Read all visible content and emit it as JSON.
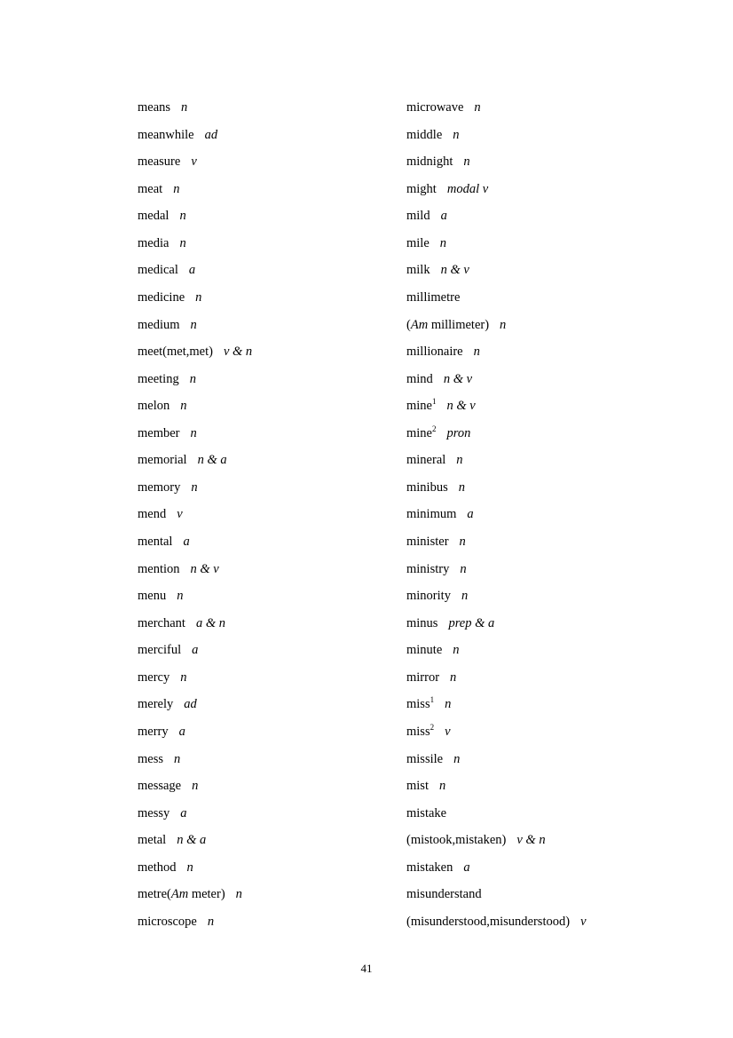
{
  "page": {
    "number": "41",
    "background": "#ffffff",
    "text_color": "#000000"
  },
  "columns": [
    {
      "entries": [
        {
          "runs": [
            {
              "t": "means"
            }
          ],
          "pos": "n"
        },
        {
          "runs": [
            {
              "t": "meanwhile"
            }
          ],
          "pos": "ad"
        },
        {
          "runs": [
            {
              "t": "measure"
            }
          ],
          "pos": "v"
        },
        {
          "runs": [
            {
              "t": "meat"
            }
          ],
          "pos": "n"
        },
        {
          "runs": [
            {
              "t": "medal"
            }
          ],
          "pos": "n"
        },
        {
          "runs": [
            {
              "t": "media"
            }
          ],
          "pos": "n"
        },
        {
          "runs": [
            {
              "t": "medical"
            }
          ],
          "pos": "a"
        },
        {
          "runs": [
            {
              "t": "medicine"
            }
          ],
          "pos": "n"
        },
        {
          "runs": [
            {
              "t": "medium"
            }
          ],
          "pos": "n"
        },
        {
          "runs": [
            {
              "t": "meet(met,met)"
            }
          ],
          "pos": "v & n"
        },
        {
          "runs": [
            {
              "t": "meeting"
            }
          ],
          "pos": "n"
        },
        {
          "runs": [
            {
              "t": "melon"
            }
          ],
          "pos": "n"
        },
        {
          "runs": [
            {
              "t": "member"
            }
          ],
          "pos": "n"
        },
        {
          "runs": [
            {
              "t": "memorial"
            }
          ],
          "pos": "n & a"
        },
        {
          "runs": [
            {
              "t": "memory"
            }
          ],
          "pos": "n"
        },
        {
          "runs": [
            {
              "t": "mend"
            }
          ],
          "pos": "v"
        },
        {
          "runs": [
            {
              "t": "mental"
            }
          ],
          "pos": "a"
        },
        {
          "runs": [
            {
              "t": "mention"
            }
          ],
          "pos": "n & v"
        },
        {
          "runs": [
            {
              "t": "menu"
            }
          ],
          "pos": "n"
        },
        {
          "runs": [
            {
              "t": "merchant"
            }
          ],
          "pos": "a & n"
        },
        {
          "runs": [
            {
              "t": "merciful"
            }
          ],
          "pos": "a"
        },
        {
          "runs": [
            {
              "t": "mercy"
            }
          ],
          "pos": "n"
        },
        {
          "runs": [
            {
              "t": "merely"
            }
          ],
          "pos": "ad"
        },
        {
          "runs": [
            {
              "t": "merry"
            }
          ],
          "pos": "a"
        },
        {
          "runs": [
            {
              "t": "mess"
            }
          ],
          "pos": "n"
        },
        {
          "runs": [
            {
              "t": "message"
            }
          ],
          "pos": "n"
        },
        {
          "runs": [
            {
              "t": "messy"
            }
          ],
          "pos": "a"
        },
        {
          "runs": [
            {
              "t": "metal"
            }
          ],
          "pos": "n & a"
        },
        {
          "runs": [
            {
              "t": "method"
            }
          ],
          "pos": "n"
        },
        {
          "runs": [
            {
              "t": "metre("
            },
            {
              "t": "Am",
              "i": true
            },
            {
              "t": " meter)"
            }
          ],
          "pos": "n"
        },
        {
          "runs": [
            {
              "t": "microscope"
            }
          ],
          "pos": "n"
        }
      ]
    },
    {
      "entries": [
        {
          "runs": [
            {
              "t": "microwave"
            }
          ],
          "pos": "n"
        },
        {
          "runs": [
            {
              "t": "middle"
            }
          ],
          "pos": "n"
        },
        {
          "runs": [
            {
              "t": "midnight"
            }
          ],
          "pos": "n"
        },
        {
          "runs": [
            {
              "t": "might"
            }
          ],
          "pos": "modal v"
        },
        {
          "runs": [
            {
              "t": "mild"
            }
          ],
          "pos": "a"
        },
        {
          "runs": [
            {
              "t": "mile"
            }
          ],
          "pos": "n"
        },
        {
          "runs": [
            {
              "t": "milk"
            }
          ],
          "pos": "n & v"
        },
        {
          "runs": [
            {
              "t": "millimetre"
            }
          ],
          "pos": ""
        },
        {
          "runs": [
            {
              "t": "("
            },
            {
              "t": "Am",
              "i": true
            },
            {
              "t": " millimeter)"
            }
          ],
          "pos": "n"
        },
        {
          "runs": [
            {
              "t": "millionaire"
            }
          ],
          "pos": "n"
        },
        {
          "runs": [
            {
              "t": "mind"
            }
          ],
          "pos": "n & v"
        },
        {
          "runs": [
            {
              "t": "mine"
            },
            {
              "t": "1",
              "sup": true
            }
          ],
          "pos": "n & v"
        },
        {
          "runs": [
            {
              "t": "mine"
            },
            {
              "t": "2",
              "sup": true
            }
          ],
          "pos": "pron"
        },
        {
          "runs": [
            {
              "t": "mineral"
            }
          ],
          "pos": "n"
        },
        {
          "runs": [
            {
              "t": "minibus"
            }
          ],
          "pos": "n"
        },
        {
          "runs": [
            {
              "t": "minimum"
            }
          ],
          "pos": "a"
        },
        {
          "runs": [
            {
              "t": "minister"
            }
          ],
          "pos": "n"
        },
        {
          "runs": [
            {
              "t": "ministry"
            }
          ],
          "pos": "n"
        },
        {
          "runs": [
            {
              "t": "minority"
            }
          ],
          "pos": "n"
        },
        {
          "runs": [
            {
              "t": "minus"
            }
          ],
          "pos": "prep & a"
        },
        {
          "runs": [
            {
              "t": "minute"
            }
          ],
          "pos": "n"
        },
        {
          "runs": [
            {
              "t": "mirror"
            }
          ],
          "pos": "n"
        },
        {
          "runs": [
            {
              "t": "miss"
            },
            {
              "t": "1",
              "sup": true
            }
          ],
          "pos": "n"
        },
        {
          "runs": [
            {
              "t": "miss"
            },
            {
              "t": "2",
              "sup": true
            }
          ],
          "pos": "v"
        },
        {
          "runs": [
            {
              "t": "missile"
            }
          ],
          "pos": "n"
        },
        {
          "runs": [
            {
              "t": "mist"
            }
          ],
          "pos": "n"
        },
        {
          "runs": [
            {
              "t": "mistake"
            }
          ],
          "pos": ""
        },
        {
          "runs": [
            {
              "t": "(mistook,mistaken)"
            }
          ],
          "pos": "v & n"
        },
        {
          "runs": [
            {
              "t": "mistaken"
            }
          ],
          "pos": "a"
        },
        {
          "runs": [
            {
              "t": "misunderstand"
            }
          ],
          "pos": ""
        },
        {
          "runs": [
            {
              "t": "(misunderstood,misunderstood)"
            }
          ],
          "pos": "v"
        }
      ]
    }
  ]
}
